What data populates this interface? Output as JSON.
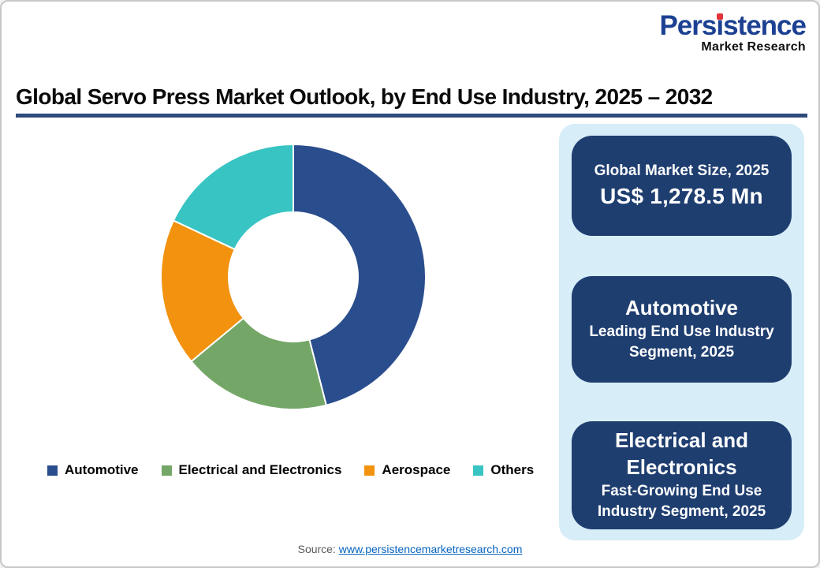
{
  "logo": {
    "name_pre": "Pers",
    "name_i": "i",
    "name_post": "stence",
    "subtitle": "Market Research",
    "brand_color": "#1C4193",
    "dot_color": "#E03238"
  },
  "title": "Global Servo Press Market Outlook, by End Use Industry, 2025 – 2032",
  "chart_data": {
    "type": "pie",
    "subtype": "donut",
    "title": "Global Servo Press Market Outlook, by End Use Industry, 2025 – 2032",
    "categories": [
      "Automotive",
      "Electrical and Electronics",
      "Aerospace",
      "Others"
    ],
    "values": [
      46,
      18,
      18,
      18
    ],
    "unit": "% (estimated from arc angles; no data labels shown)",
    "colors": [
      "#2A4E8D",
      "#74A767",
      "#F2920F",
      "#38C4C3"
    ],
    "start_angle_deg": 0,
    "direction": "clockwise",
    "inner_radius_ratio": 0.49,
    "separator_color": "#FFFFFF",
    "legend_position": "bottom",
    "labels_shown": false
  },
  "info_panel": {
    "background": "#D7EDF8",
    "card_background": "#1F3E70",
    "cards": [
      {
        "label": "Global Market Size, 2025",
        "value": "US$ 1,278.5 Mn"
      },
      {
        "headline": "Automotive",
        "description": "Leading End Use Industry Segment, 2025"
      },
      {
        "headline": "Electrical and Electronics",
        "description": "Fast-Growing End Use Industry Segment, 2025"
      }
    ]
  },
  "source": {
    "prefix": "Source: ",
    "link_text": "www.persistencemarketresearch.com"
  }
}
